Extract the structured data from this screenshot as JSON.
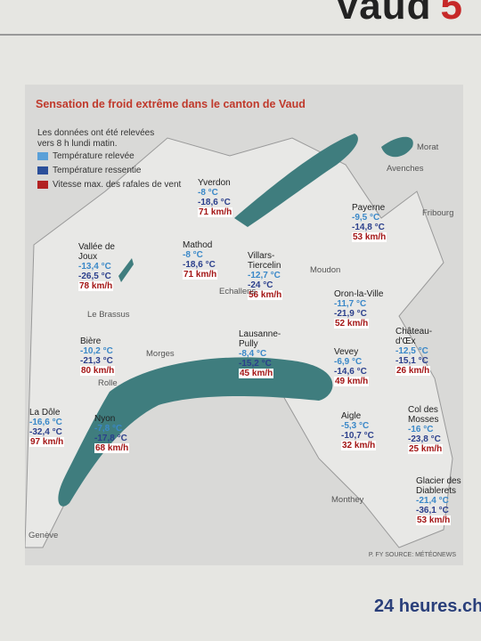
{
  "header": {
    "section": "Vaud",
    "page": "5"
  },
  "map": {
    "title": "Sensation de froid extrême dans le canton de Vaud",
    "intro": "Les données ont été relevées vers 8 h lundi matin.",
    "legend": [
      "Température relevée",
      "Température ressentie",
      "Vitesse max. des rafales de vent"
    ],
    "stations": [
      {
        "name": "Yverdon",
        "temp": "-8 °C",
        "felt": "-18,6 °C",
        "wind": "71 km/h"
      },
      {
        "name": "Payerne",
        "temp": "-9,5 °C",
        "felt": "-14,8 °C",
        "wind": "53 km/h"
      },
      {
        "name": "Vallée de Joux",
        "temp": "-13,4 °C",
        "felt": "-26,5 °C",
        "wind": "78 km/h"
      },
      {
        "name": "Mathod",
        "temp": "-8 °C",
        "felt": "-18,6 °C",
        "wind": "71 km/h"
      },
      {
        "name": "Villars-Tiercelin",
        "temp": "-12,7 °C",
        "felt": "-24 °C",
        "wind": "56 km/h"
      },
      {
        "name": "Oron-la-Ville",
        "temp": "-11,7 °C",
        "felt": "-21,9 °C",
        "wind": "52 km/h"
      },
      {
        "name": "Bière",
        "temp": "-10,2 °C",
        "felt": "-21,3 °C",
        "wind": "80 km/h"
      },
      {
        "name": "Lausanne-Pully",
        "temp": "-8,4 °C",
        "felt": "-15,2 °C",
        "wind": "45 km/h"
      },
      {
        "name": "Château-d'Œx",
        "temp": "-12,5 °C",
        "felt": "-15,1 °C",
        "wind": "26 km/h"
      },
      {
        "name": "Vevey",
        "temp": "-6,9 °C",
        "felt": "-14,6 °C",
        "wind": "49 km/h"
      },
      {
        "name": "La Dôle",
        "temp": "-16,6 °C",
        "felt": "-32,4 °C",
        "wind": "97 km/h"
      },
      {
        "name": "Nyon",
        "temp": "-7,8 °C",
        "felt": "-17,8 °C",
        "wind": "68 km/h"
      },
      {
        "name": "Aigle",
        "temp": "-5,3 °C",
        "felt": "-10,7 °C",
        "wind": "32 km/h"
      },
      {
        "name": "Col des Mosses",
        "temp": "-16 °C",
        "felt": "-23,8 °C",
        "wind": "25 km/h"
      },
      {
        "name": "Glacier des Diablerets",
        "temp": "-21,4 °C",
        "felt": "-36,1 °C",
        "wind": "53 km/h"
      }
    ],
    "places": [
      "Morat",
      "Avenches",
      "Fribourg",
      "Moudon",
      "Echallens",
      "Le Brassus",
      "Morges",
      "Rolle",
      "Genève",
      "Monthey"
    ],
    "source": "P. FY SOURCE: MÉTÉONEWS"
  },
  "footer": {
    "brand": "24 heures.ch"
  }
}
